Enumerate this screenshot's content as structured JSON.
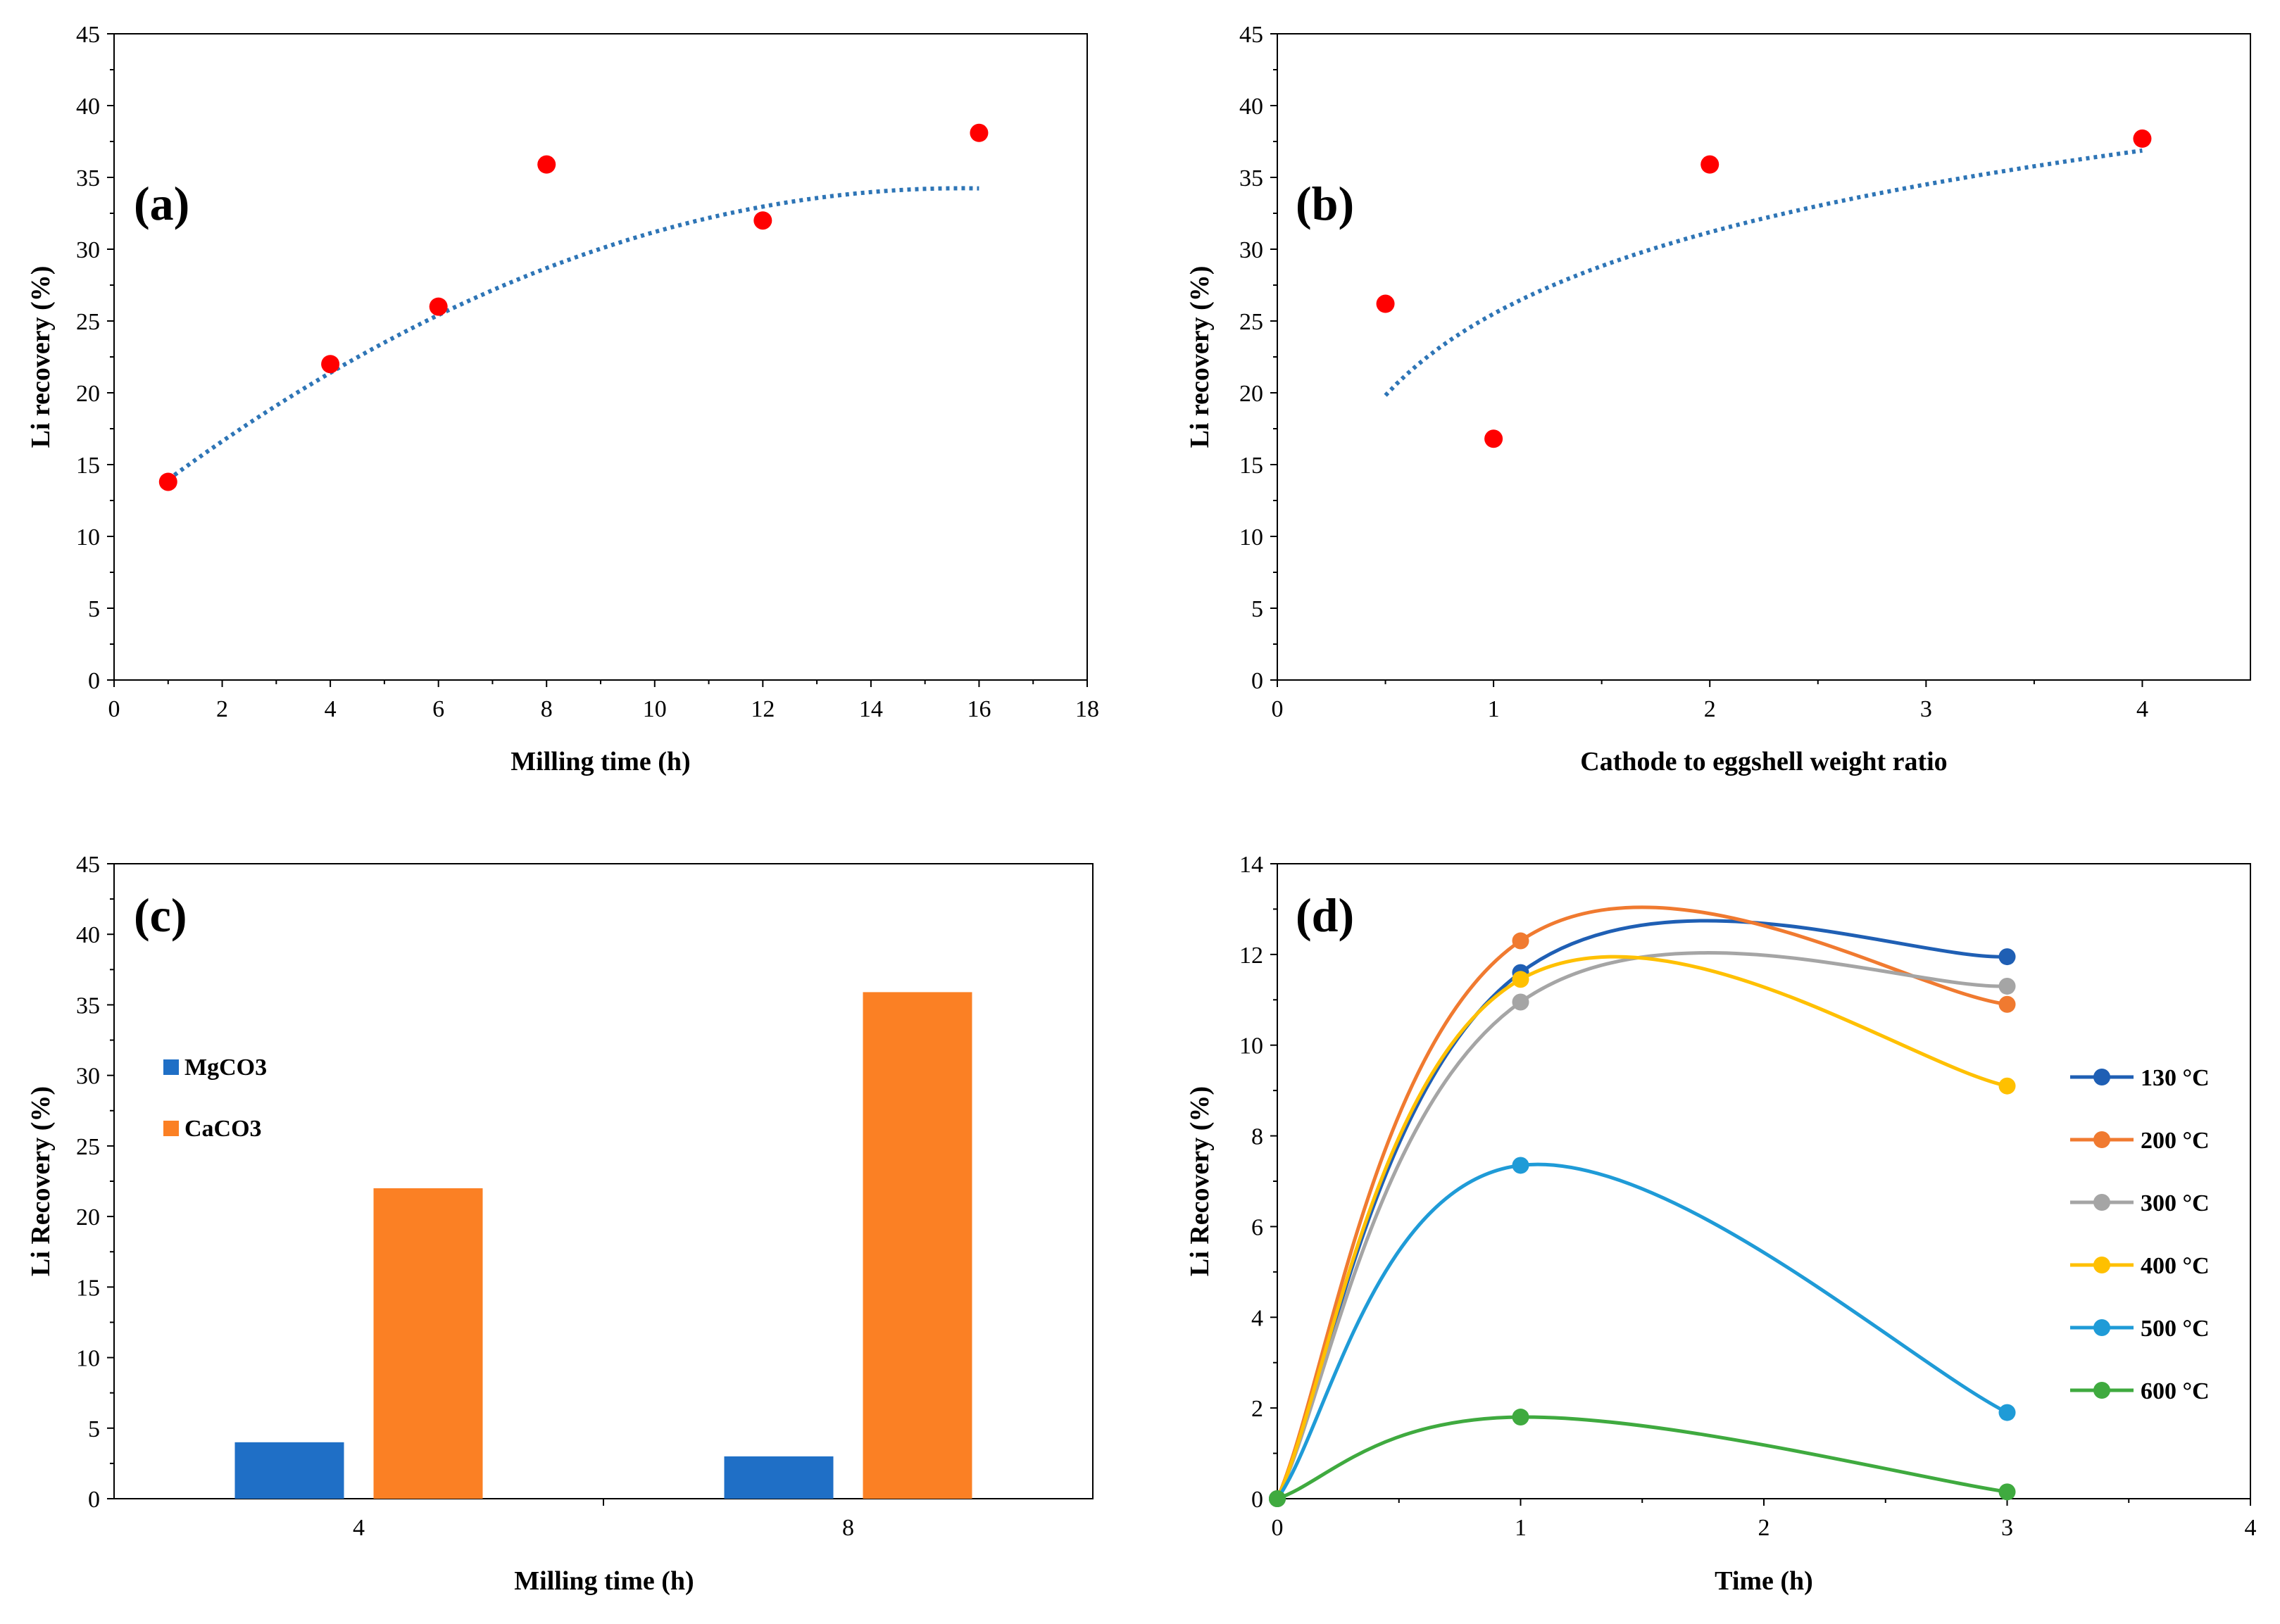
{
  "chart_data": [
    {
      "id": "a",
      "type": "scatter",
      "panel_label": "(a)",
      "xlabel": "Milling time (h)",
      "ylabel": "Li recovery (%)",
      "xlim": [
        0,
        18
      ],
      "ylim": [
        0,
        45
      ],
      "xticks": [
        0,
        2,
        4,
        6,
        8,
        10,
        12,
        14,
        16,
        18
      ],
      "yticks": [
        0,
        5,
        10,
        15,
        20,
        25,
        30,
        35,
        40,
        45
      ],
      "x": [
        1,
        4,
        6,
        8,
        12,
        16
      ],
      "y": [
        13.8,
        22,
        26,
        35.9,
        32,
        38.1
      ],
      "marker_color": "#ff0000",
      "trendline": {
        "type": "polynomial",
        "color": "#2e75b6",
        "style": "dotted",
        "x_range": [
          1,
          16
        ],
        "coef": [
          11.1,
          2.95,
          -0.094
        ]
      }
    },
    {
      "id": "b",
      "type": "scatter",
      "panel_label": "(b)",
      "xlabel": "Cathode to eggshell weight ratio",
      "ylabel": "Li recovery (%)",
      "xlim": [
        0,
        4.5
      ],
      "ylim": [
        0,
        45
      ],
      "xticks": [
        0,
        1,
        2,
        3,
        4
      ],
      "yticks": [
        0,
        5,
        10,
        15,
        20,
        25,
        30,
        35,
        40,
        45
      ],
      "x": [
        0.5,
        1,
        2,
        4
      ],
      "y": [
        26.2,
        16.8,
        35.9,
        37.7
      ],
      "marker_color": "#ff0000",
      "trendline": {
        "type": "logarithmic",
        "color": "#2e75b6",
        "style": "dotted",
        "x_range": [
          0.5,
          4
        ],
        "a": 25.5,
        "b": 8.2
      }
    },
    {
      "id": "c",
      "type": "bar",
      "panel_label": "(c)",
      "xlabel": "Milling time (h)",
      "ylabel": "Li Recovery (%)",
      "ylim": [
        0,
        45
      ],
      "yticks": [
        0,
        5,
        10,
        15,
        20,
        25,
        30,
        35,
        40,
        45
      ],
      "categories": [
        "4",
        "8"
      ],
      "series": [
        {
          "name": "MgCO3",
          "color": "#1f6fc6",
          "values": [
            4,
            3
          ]
        },
        {
          "name": "CaCO3",
          "color": "#fb8024",
          "values": [
            22,
            35.9
          ]
        }
      ],
      "legend": "left"
    },
    {
      "id": "d",
      "type": "line",
      "panel_label": "(d)",
      "xlabel": "Time (h)",
      "ylabel": "Li Recovery (%)",
      "xlim": [
        0,
        4
      ],
      "ylim": [
        0,
        14
      ],
      "xticks": [
        0,
        1,
        2,
        3,
        4
      ],
      "yticks": [
        0,
        2,
        4,
        6,
        8,
        10,
        12,
        14
      ],
      "x": [
        0,
        1,
        3
      ],
      "series": [
        {
          "name": "130 °C",
          "color": "#1f5fb4",
          "values": [
            0,
            11.6,
            11.95
          ]
        },
        {
          "name": "200 °C",
          "color": "#f07a30",
          "values": [
            0,
            12.3,
            10.9
          ]
        },
        {
          "name": "300 °C",
          "color": "#a5a5a5",
          "values": [
            0,
            10.95,
            11.3
          ]
        },
        {
          "name": "400 °C",
          "color": "#ffc000",
          "values": [
            0,
            11.45,
            9.1
          ]
        },
        {
          "name": "500 °C",
          "color": "#1f9bd7",
          "values": [
            0,
            7.35,
            1.9
          ]
        },
        {
          "name": "600 °C",
          "color": "#3faa3f",
          "values": [
            0,
            1.8,
            0.15
          ]
        }
      ],
      "legend": "right"
    }
  ]
}
